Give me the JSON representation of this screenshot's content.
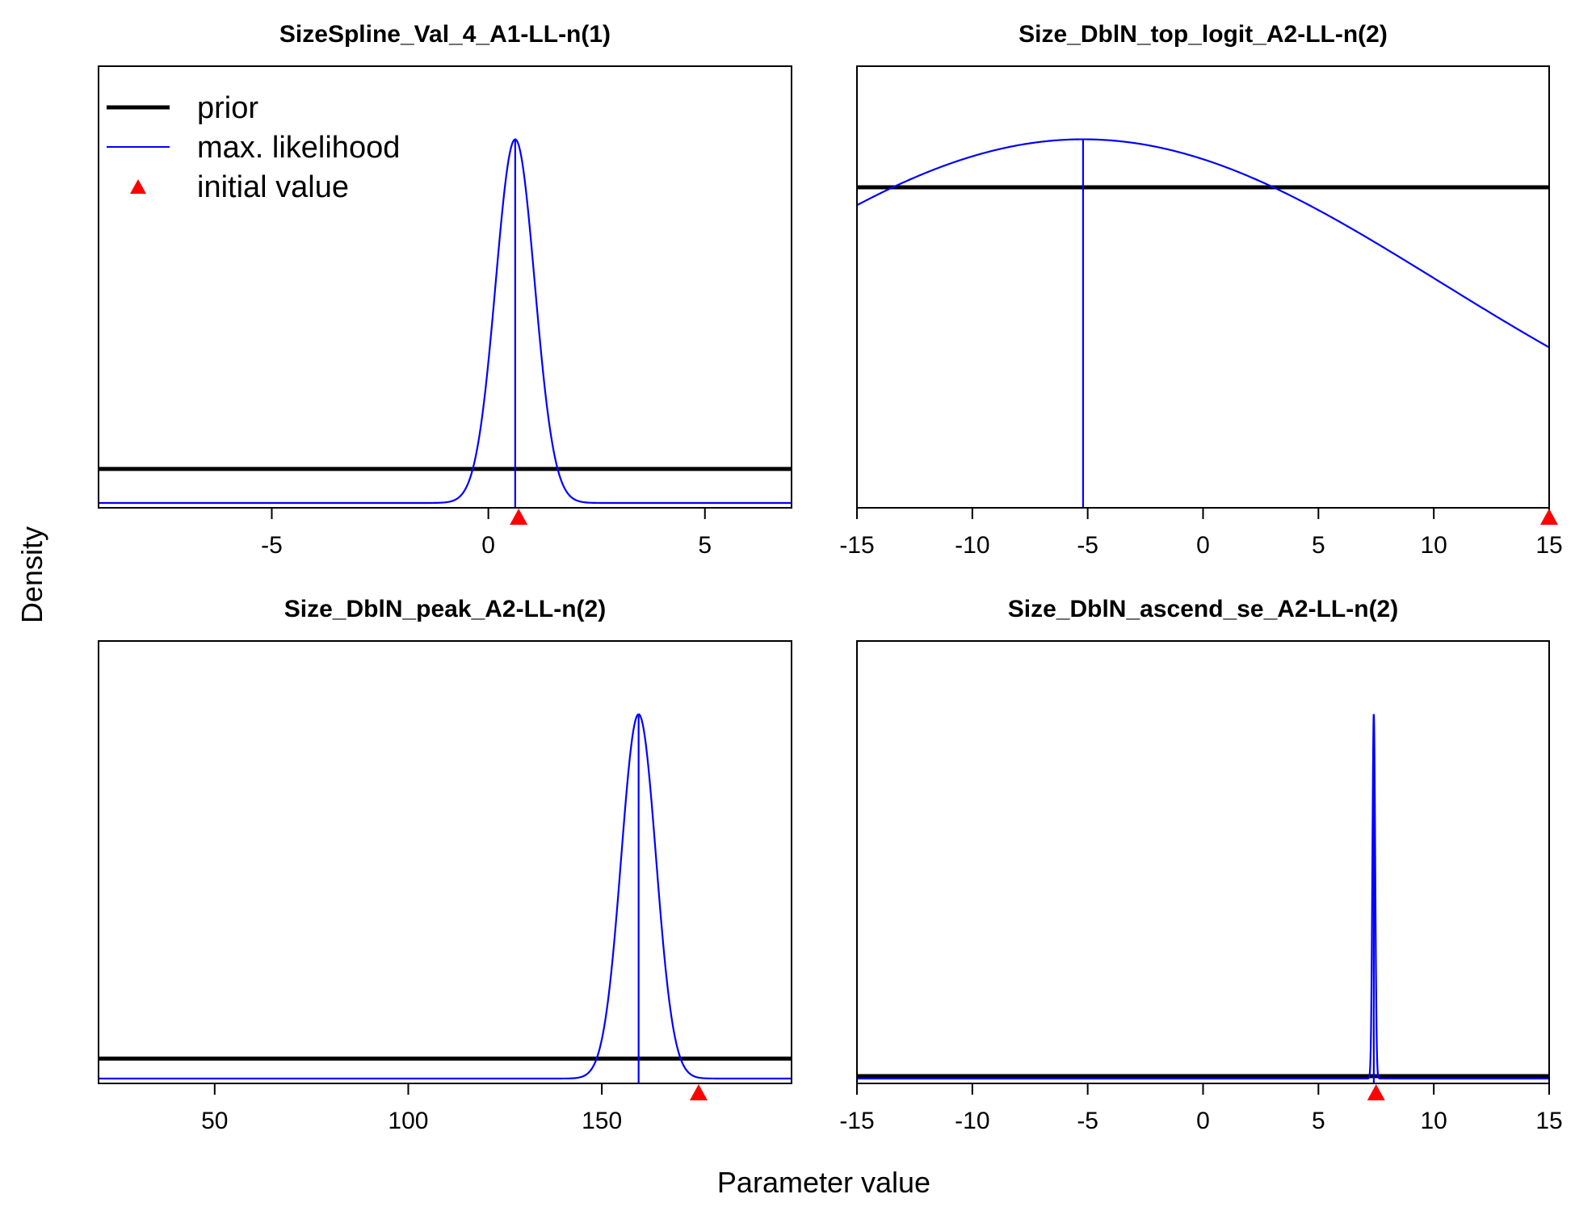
{
  "figure": {
    "ylabel": "Density",
    "xlabel": "Parameter value",
    "legend": {
      "position": "top-left of first panel",
      "items": [
        {
          "label": "prior",
          "style": "thick-line",
          "color": "#000000"
        },
        {
          "label": "max. likelihood",
          "style": "thin-line",
          "color": "#0000ff"
        },
        {
          "label": "initial value",
          "style": "triangle",
          "color": "#ff0000"
        }
      ]
    },
    "colors": {
      "prior": "#000000",
      "mle": "#0000ff",
      "initial": "#ff0000",
      "axis": "#000000"
    }
  },
  "chart_data": [
    {
      "type": "line",
      "title": "SizeSpline_Val_4_A1-LL-n(1)",
      "xlim": [
        -9,
        7
      ],
      "ylim": [
        0,
        1
      ],
      "xticks": [
        -5,
        0,
        5
      ],
      "prior": {
        "shape": "flat",
        "level": 0.085
      },
      "mle": {
        "shape": "normal",
        "mean": 0.62,
        "sd": 0.45,
        "peak": 0.91
      },
      "initial_value": 0.7
    },
    {
      "type": "line",
      "title": "Size_DblN_top_logit_A2-LL-n(2)",
      "xlim": [
        -15,
        15
      ],
      "ylim": [
        0,
        1
      ],
      "xticks": [
        -15,
        -10,
        -5,
        0,
        5,
        10,
        15
      ],
      "prior": {
        "shape": "flat",
        "level": 0.79
      },
      "mle": {
        "shape": "normal",
        "mean": -5.2,
        "sd": 15.5,
        "peak": 0.91
      },
      "initial_value": 15
    },
    {
      "type": "line",
      "title": "Size_DblN_peak_A2-LL-n(2)",
      "xlim": [
        20,
        199
      ],
      "ylim": [
        0,
        1
      ],
      "xticks": [
        50,
        100,
        150
      ],
      "prior": {
        "shape": "flat",
        "level": 0.05
      },
      "mle": {
        "shape": "normal",
        "mean": 159.5,
        "sd": 4.5,
        "peak": 0.91
      },
      "initial_value": 175
    },
    {
      "type": "line",
      "title": "Size_DblN_ascend_se_A2-LL-n(2)",
      "xlim": [
        -15,
        15
      ],
      "ylim": [
        0,
        1
      ],
      "xticks": [
        -15,
        -10,
        -5,
        0,
        5,
        10,
        15
      ],
      "prior": {
        "shape": "flat",
        "level": 0.006
      },
      "mle": {
        "shape": "normal",
        "mean": 7.4,
        "sd": 0.06,
        "peak": 0.91
      },
      "initial_value": 7.5
    }
  ]
}
